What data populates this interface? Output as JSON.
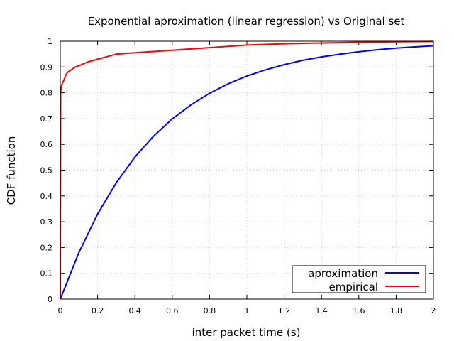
{
  "chart_data": {
    "type": "line",
    "title": "Exponential aproximation (linear regression) vs Original set",
    "xlabel": "inter packet time (s)",
    "ylabel": "CDF function",
    "xlim": [
      0,
      2
    ],
    "ylim": [
      0,
      1
    ],
    "x_ticks": [
      "0",
      "0.2",
      "0.4",
      "0.6",
      "0.8",
      "1",
      "1.2",
      "1.4",
      "1.6",
      "1.8",
      "2"
    ],
    "y_ticks": [
      "0",
      "0.1",
      "0.2",
      "0.3",
      "0.4",
      "0.5",
      "0.6",
      "0.7",
      "0.8",
      "0.9",
      "1"
    ],
    "grid": true,
    "legend_position": "bottom-right",
    "series": [
      {
        "name": "aproximation",
        "color": "#0000ff",
        "x": [
          0,
          0.1,
          0.2,
          0.3,
          0.4,
          0.5,
          0.6,
          0.7,
          0.8,
          0.9,
          1.0,
          1.1,
          1.2,
          1.3,
          1.4,
          1.5,
          1.6,
          1.7,
          1.8,
          1.9,
          2.0
        ],
        "y": [
          0,
          0.181,
          0.33,
          0.451,
          0.551,
          0.632,
          0.699,
          0.753,
          0.798,
          0.835,
          0.865,
          0.889,
          0.909,
          0.926,
          0.939,
          0.95,
          0.959,
          0.967,
          0.973,
          0.978,
          0.982
        ]
      },
      {
        "name": "empirical",
        "color": "#ff0000",
        "x": [
          0,
          0.002,
          0.005,
          0.01,
          0.02,
          0.03,
          0.04,
          0.06,
          0.08,
          0.1,
          0.15,
          0.2,
          0.25,
          0.3,
          0.4,
          0.5,
          0.6,
          0.7,
          0.8,
          0.9,
          1.0,
          1.2,
          1.4,
          1.6,
          1.8,
          2.0
        ],
        "y": [
          0,
          0.8,
          0.82,
          0.835,
          0.85,
          0.87,
          0.88,
          0.89,
          0.9,
          0.905,
          0.92,
          0.93,
          0.94,
          0.95,
          0.955,
          0.96,
          0.965,
          0.97,
          0.975,
          0.98,
          0.985,
          0.99,
          0.993,
          0.996,
          0.998,
          0.999
        ]
      }
    ]
  }
}
